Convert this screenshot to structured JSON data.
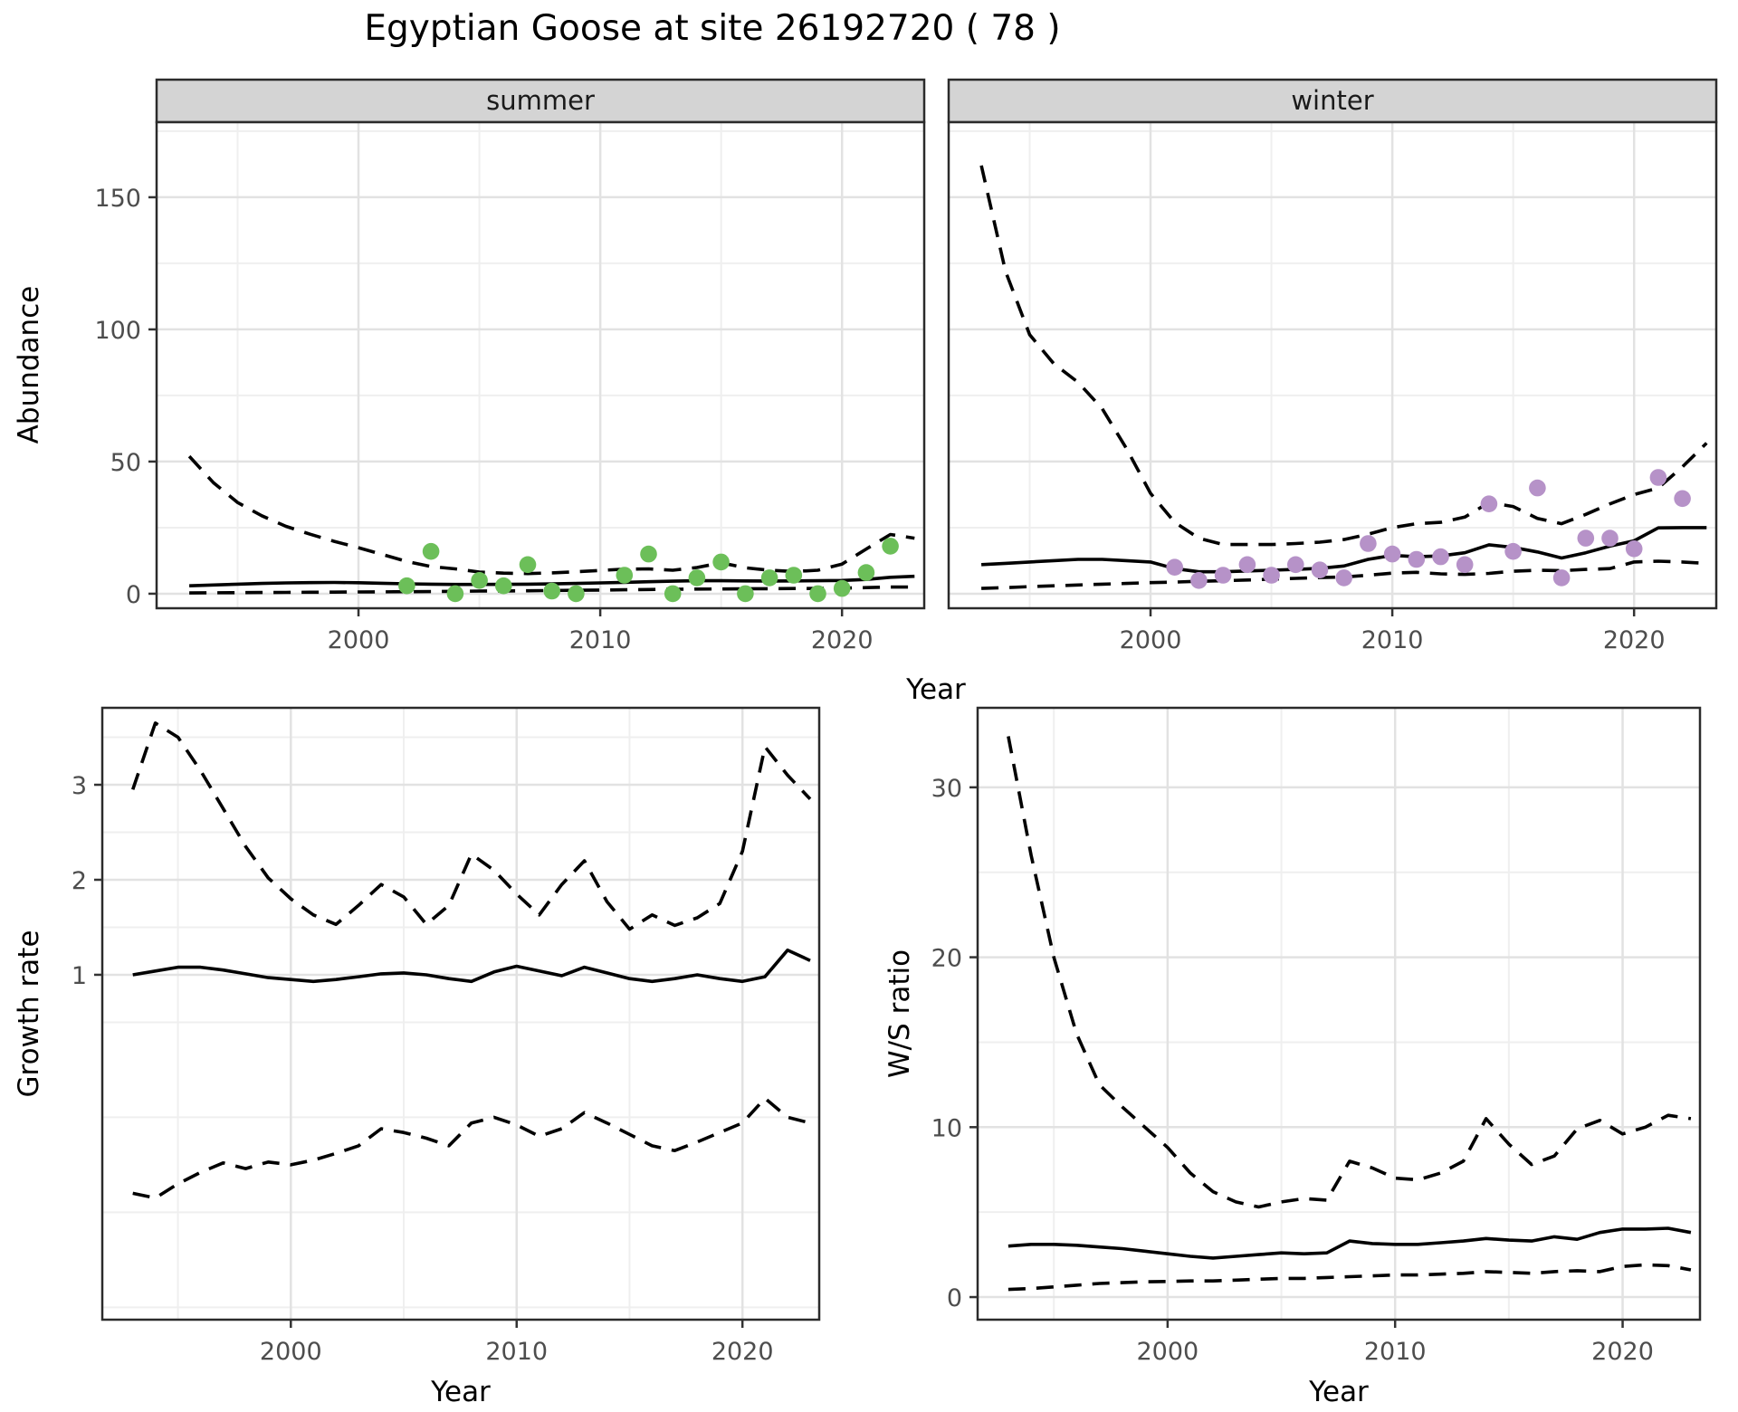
{
  "title": "Egyptian Goose at site 26192720 ( 78 )",
  "colors": {
    "summer_points": "#6cbf59",
    "winter_points": "#b692c8",
    "line": "#000000",
    "grid_major": "#e2e2e2",
    "grid_minor": "#efefef",
    "panel_border": "#2b2b2b",
    "strip_background": "#d4d4d4",
    "tick_text": "#4d4d4d"
  },
  "chart_data": [
    {
      "id": "abundance-summer",
      "type": "line",
      "facet_label": "summer",
      "xlabel": "Year",
      "ylabel": "Abundance",
      "xlim": [
        1991.65,
        2023.4
      ],
      "ylim": [
        -5.5,
        178.4
      ],
      "x_ticks": [
        2000,
        2010,
        2020
      ],
      "x_minor": [
        1995,
        2005,
        2015
      ],
      "y_ticks": [
        0,
        50,
        100,
        150
      ],
      "y_minor": [
        25,
        75,
        125,
        175
      ],
      "grid": true,
      "legend": "none",
      "years": [
        1993,
        1994,
        1995,
        1996,
        1997,
        1998,
        1999,
        2000,
        2001,
        2002,
        2003,
        2004,
        2005,
        2006,
        2007,
        2008,
        2009,
        2010,
        2011,
        2012,
        2013,
        2014,
        2015,
        2016,
        2017,
        2018,
        2019,
        2020,
        2021,
        2022,
        2023
      ],
      "series": [
        {
          "name": "upper95",
          "style": "dashed",
          "values": [
            52,
            42,
            34.5,
            29.5,
            25.5,
            22.5,
            19.8,
            17.4,
            14.8,
            12.2,
            10.3,
            9.4,
            8.2,
            7.8,
            7.6,
            7.9,
            8.3,
            8.8,
            9.3,
            9.4,
            8.9,
            9.9,
            11.7,
            9.8,
            8.9,
            8.4,
            8.9,
            11.2,
            16.9,
            22.4,
            21.0
          ]
        },
        {
          "name": "fit",
          "style": "solid",
          "values": [
            3.0,
            3.3,
            3.6,
            3.9,
            4.1,
            4.2,
            4.25,
            4.15,
            3.95,
            3.75,
            3.6,
            3.5,
            3.5,
            3.55,
            3.6,
            3.7,
            3.9,
            4.1,
            4.3,
            4.55,
            4.75,
            4.9,
            4.9,
            4.85,
            4.8,
            4.85,
            4.9,
            5.0,
            5.4,
            6.2,
            6.6
          ]
        },
        {
          "name": "lower95",
          "style": "dashed",
          "values": [
            0.3,
            0.35,
            0.4,
            0.45,
            0.5,
            0.55,
            0.6,
            0.65,
            0.7,
            0.75,
            0.8,
            0.9,
            1.0,
            1.05,
            1.1,
            1.2,
            1.3,
            1.4,
            1.5,
            1.6,
            1.7,
            1.75,
            1.8,
            1.85,
            1.9,
            1.95,
            2.0,
            2.1,
            2.3,
            2.5,
            2.5
          ]
        }
      ],
      "points": {
        "color": "#6cbf59",
        "data": [
          [
            2002,
            3
          ],
          [
            2003,
            16
          ],
          [
            2004,
            0
          ],
          [
            2005,
            5
          ],
          [
            2006,
            3
          ],
          [
            2007,
            11
          ],
          [
            2008,
            1
          ],
          [
            2009,
            0
          ],
          [
            2011,
            7
          ],
          [
            2012,
            15
          ],
          [
            2013,
            0
          ],
          [
            2014,
            6
          ],
          [
            2015,
            12
          ],
          [
            2016,
            0
          ],
          [
            2017,
            6
          ],
          [
            2018,
            7
          ],
          [
            2019,
            0
          ],
          [
            2020,
            2
          ],
          [
            2021,
            8
          ],
          [
            2022,
            18
          ]
        ]
      }
    },
    {
      "id": "abundance-winter",
      "type": "line",
      "facet_label": "winter",
      "xlabel": "Year",
      "ylabel": "Abundance",
      "xlim": [
        1991.65,
        2023.4
      ],
      "ylim": [
        -5.5,
        178.4
      ],
      "x_ticks": [
        2000,
        2010,
        2020
      ],
      "x_minor": [
        1995,
        2005,
        2015
      ],
      "y_ticks": [
        0,
        50,
        100,
        150
      ],
      "y_minor": [
        25,
        75,
        125,
        175
      ],
      "grid": true,
      "legend": "none",
      "years": [
        1993,
        1994,
        1995,
        1996,
        1997,
        1998,
        1999,
        2000,
        2001,
        2002,
        2003,
        2004,
        2005,
        2006,
        2007,
        2008,
        2009,
        2010,
        2011,
        2012,
        2013,
        2014,
        2015,
        2016,
        2017,
        2018,
        2019,
        2020,
        2021,
        2022,
        2023
      ],
      "series": [
        {
          "name": "upper95",
          "style": "dashed",
          "values": [
            162,
            122,
            98,
            87,
            80,
            70,
            55,
            38,
            27,
            21,
            18.6,
            18.6,
            18.6,
            19,
            19.5,
            20.5,
            22.5,
            25,
            26.5,
            27,
            29,
            34.5,
            33,
            28.5,
            26.5,
            30,
            34,
            37.5,
            40,
            48,
            57
          ]
        },
        {
          "name": "fit",
          "style": "solid",
          "values": [
            11,
            11.5,
            12,
            12.5,
            13,
            13,
            12.5,
            12,
            9.5,
            8.3,
            8.3,
            8.6,
            8.9,
            9.2,
            9.6,
            10.5,
            13,
            14.5,
            14,
            14.3,
            15.5,
            18.5,
            17.5,
            15.8,
            13.5,
            15.5,
            18,
            20,
            24.9,
            25,
            25
          ]
        },
        {
          "name": "lower95",
          "style": "dashed",
          "values": [
            2,
            2.3,
            2.7,
            3,
            3.3,
            3.6,
            3.9,
            4.2,
            4.4,
            4.7,
            4.9,
            5.2,
            5.5,
            5.8,
            6.1,
            6.3,
            7,
            7.8,
            8.1,
            7.5,
            7.3,
            7.7,
            8.5,
            8.9,
            8.7,
            9.2,
            9.5,
            12,
            12.3,
            12,
            11.5
          ]
        }
      ],
      "points": {
        "color": "#b692c8",
        "data": [
          [
            2001,
            10
          ],
          [
            2002,
            5
          ],
          [
            2003,
            7
          ],
          [
            2004,
            11
          ],
          [
            2005,
            7
          ],
          [
            2006,
            11
          ],
          [
            2007,
            9
          ],
          [
            2008,
            6
          ],
          [
            2009,
            19
          ],
          [
            2010,
            15
          ],
          [
            2011,
            13
          ],
          [
            2012,
            14
          ],
          [
            2013,
            11
          ],
          [
            2014,
            34
          ],
          [
            2015,
            16
          ],
          [
            2016,
            40
          ],
          [
            2017,
            6
          ],
          [
            2018,
            21
          ],
          [
            2019,
            21
          ],
          [
            2020,
            17
          ],
          [
            2021,
            44
          ],
          [
            2022,
            36
          ]
        ]
      }
    },
    {
      "id": "growth-rate",
      "type": "line",
      "facet_label": "",
      "xlabel": "Year",
      "ylabel": "Growth rate",
      "xlim": [
        1991.65,
        2023.4
      ],
      "ylim": [
        -2.63,
        3.81
      ],
      "x_ticks": [
        2000,
        2010,
        2020
      ],
      "x_minor": [
        1995,
        2005,
        2015
      ],
      "y_ticks": [
        1,
        2,
        3
      ],
      "y_minor": [
        -2.5,
        -1.5,
        -0.5,
        0.5,
        1.5,
        2.5,
        3.5
      ],
      "grid": true,
      "legend": "none",
      "years": [
        1993,
        1994,
        1995,
        1996,
        1997,
        1998,
        1999,
        2000,
        2001,
        2002,
        2003,
        2004,
        2005,
        2006,
        2007,
        2008,
        2009,
        2010,
        2011,
        2012,
        2013,
        2014,
        2015,
        2016,
        2017,
        2018,
        2019,
        2020,
        2021,
        2022,
        2023
      ],
      "series": [
        {
          "name": "upper95",
          "style": "dashed",
          "values": [
            2.95,
            3.65,
            3.5,
            3.15,
            2.75,
            2.35,
            2.02,
            1.8,
            1.63,
            1.53,
            1.73,
            1.95,
            1.82,
            1.53,
            1.73,
            2.27,
            2.1,
            1.85,
            1.63,
            1.95,
            2.2,
            1.77,
            1.48,
            1.63,
            1.52,
            1.6,
            1.75,
            2.3,
            3.4,
            3.1,
            2.85
          ]
        },
        {
          "name": "fit",
          "style": "solid",
          "values": [
            1.0,
            1.04,
            1.08,
            1.08,
            1.05,
            1.01,
            0.97,
            0.95,
            0.93,
            0.95,
            0.98,
            1.01,
            1.02,
            1.0,
            0.96,
            0.93,
            1.03,
            1.09,
            1.04,
            0.99,
            1.08,
            1.02,
            0.96,
            0.93,
            0.96,
            1.0,
            0.96,
            0.93,
            0.98,
            1.26,
            1.15
          ]
        },
        {
          "name": "lower95",
          "style": "dashed",
          "values": [
            -1.3,
            -1.35,
            -1.2,
            -1.08,
            -0.98,
            -1.04,
            -0.97,
            -1.0,
            -0.95,
            -0.88,
            -0.8,
            -0.62,
            -0.66,
            -0.72,
            -0.8,
            -0.56,
            -0.5,
            -0.58,
            -0.7,
            -0.62,
            -0.45,
            -0.56,
            -0.68,
            -0.8,
            -0.85,
            -0.76,
            -0.66,
            -0.56,
            -0.3,
            -0.5,
            -0.56
          ]
        }
      ],
      "points": {
        "color": "none",
        "data": []
      }
    },
    {
      "id": "ws-ratio",
      "type": "line",
      "facet_label": "",
      "xlabel": "Year",
      "ylabel": "W/S ratio",
      "xlim": [
        1991.65,
        2023.4
      ],
      "ylim": [
        -1.33,
        34.68
      ],
      "x_ticks": [
        2000,
        2010,
        2020
      ],
      "x_minor": [
        1995,
        2005,
        2015
      ],
      "y_ticks": [
        0,
        10,
        20,
        30
      ],
      "y_minor": [
        5,
        15,
        25
      ],
      "grid": true,
      "legend": "none",
      "years": [
        1993,
        1994,
        1995,
        1996,
        1997,
        1998,
        1999,
        2000,
        2001,
        2002,
        2003,
        2004,
        2005,
        2006,
        2007,
        2008,
        2009,
        2010,
        2011,
        2012,
        2013,
        2014,
        2015,
        2016,
        2017,
        2018,
        2019,
        2020,
        2021,
        2022,
        2023
      ],
      "series": [
        {
          "name": "upper95",
          "style": "dashed",
          "values": [
            33,
            26,
            20,
            15.5,
            12.5,
            11.2,
            10,
            8.8,
            7.3,
            6.2,
            5.6,
            5.3,
            5.6,
            5.8,
            5.7,
            8.0,
            7.6,
            7.0,
            6.9,
            7.3,
            8.0,
            10.5,
            9.0,
            7.8,
            8.3,
            9.9,
            10.4,
            9.6,
            10.0,
            10.7,
            10.5
          ]
        },
        {
          "name": "fit",
          "style": "solid",
          "values": [
            3.0,
            3.1,
            3.1,
            3.05,
            2.95,
            2.85,
            2.7,
            2.55,
            2.4,
            2.3,
            2.4,
            2.5,
            2.6,
            2.55,
            2.6,
            3.3,
            3.15,
            3.1,
            3.1,
            3.2,
            3.3,
            3.45,
            3.35,
            3.3,
            3.55,
            3.4,
            3.8,
            4.0,
            4.0,
            4.05,
            3.8
          ]
        },
        {
          "name": "lower95",
          "style": "dashed",
          "values": [
            0.45,
            0.5,
            0.6,
            0.7,
            0.8,
            0.85,
            0.9,
            0.92,
            0.95,
            0.95,
            1.0,
            1.05,
            1.1,
            1.1,
            1.15,
            1.2,
            1.25,
            1.3,
            1.3,
            1.35,
            1.4,
            1.5,
            1.45,
            1.4,
            1.5,
            1.55,
            1.5,
            1.8,
            1.9,
            1.85,
            1.6
          ]
        }
      ],
      "points": {
        "color": "none",
        "data": []
      }
    }
  ]
}
